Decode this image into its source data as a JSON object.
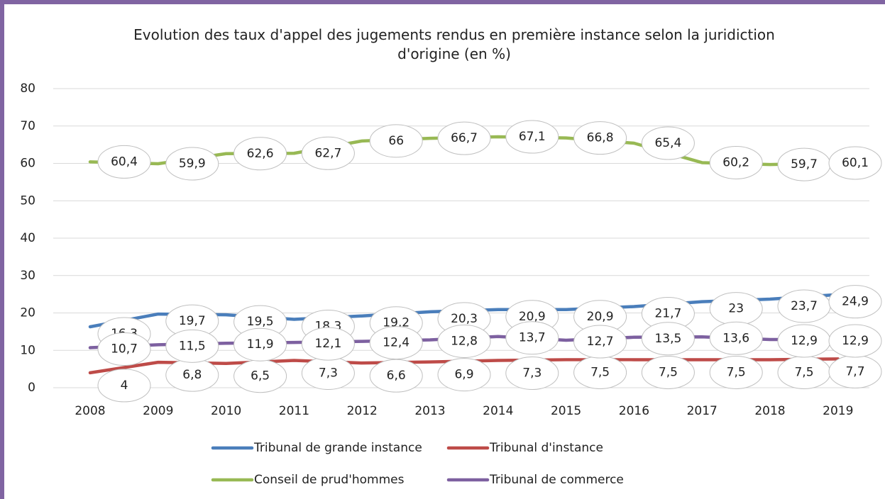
{
  "chart_data": {
    "type": "line",
    "title": "Evolution des taux d'appel des jugements rendus en première instance selon la juridiction d'origine (en %)",
    "categories": [
      "2008",
      "2009",
      "2010",
      "2011",
      "2012",
      "2013",
      "2014",
      "2015",
      "2016",
      "2017",
      "2018",
      "2019"
    ],
    "series": [
      {
        "name": "Tribunal de grande instance",
        "color": "#4a7ebb",
        "values": [
          16.3,
          19.7,
          19.5,
          18.3,
          19.2,
          20.3,
          20.9,
          20.9,
          21.7,
          23,
          23.7,
          24.9
        ],
        "value_labels": [
          "16,3",
          "19,7",
          "19,5",
          "18,3",
          "19,2",
          "20,3",
          "20,9",
          "20,9",
          "21,7",
          "23",
          "23,7",
          "24,9"
        ]
      },
      {
        "name": "Tribunal d'instance",
        "color": "#be4b48",
        "values": [
          4,
          6.8,
          6.5,
          7.3,
          6.6,
          6.9,
          7.3,
          7.5,
          7.5,
          7.5,
          7.5,
          7.7
        ],
        "value_labels": [
          "4",
          "6,8",
          "6,5",
          "7,3",
          "6,6",
          "6,9",
          "7,3",
          "7,5",
          "7,5",
          "7,5",
          "7,5",
          "7,7"
        ]
      },
      {
        "name": "Conseil de prud'hommes",
        "color": "#98b954",
        "values": [
          60.4,
          59.9,
          62.6,
          62.7,
          66,
          66.7,
          67.1,
          66.8,
          65.4,
          60.2,
          59.7,
          60.1
        ],
        "value_labels": [
          "60,4",
          "59,9",
          "62,6",
          "62,7",
          "66",
          "66,7",
          "67,1",
          "66,8",
          "65,4",
          "60,2",
          "59,7",
          "60,1"
        ]
      },
      {
        "name": "Tribunal de commerce",
        "color": "#7d60a0",
        "values": [
          10.7,
          11.5,
          11.9,
          12.1,
          12.4,
          12.8,
          13.7,
          12.7,
          13.5,
          13.6,
          12.9,
          12.9
        ],
        "value_labels": [
          "10,7",
          "11,5",
          "11,9",
          "12,1",
          "12,4",
          "12,8",
          "13,7",
          "12,7",
          "13,5",
          "13,6",
          "12,9",
          "12,9"
        ]
      }
    ],
    "ylim": [
      0,
      80
    ],
    "yticks": [
      0,
      10,
      20,
      30,
      40,
      50,
      60,
      70,
      80
    ],
    "grid": true,
    "legend": "bottom"
  }
}
